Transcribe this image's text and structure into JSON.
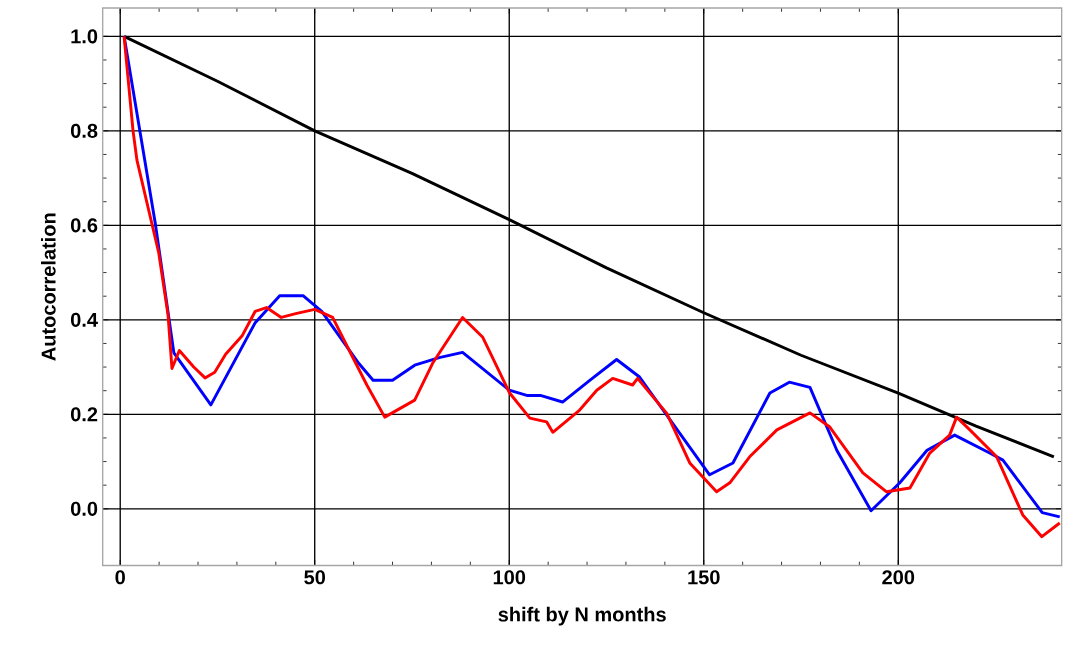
{
  "chart_data": {
    "type": "line",
    "xlabel": "shift by N months",
    "ylabel": "Autocorrelation",
    "xlim": [
      -4.5,
      242
    ],
    "ylim": [
      -0.12,
      1.06
    ],
    "xticks": [
      0,
      50,
      100,
      150,
      200
    ],
    "yticks": [
      {
        "value": 0,
        "label": "0.0"
      },
      {
        "value": 0.2,
        "label": "0.2"
      },
      {
        "value": 0.4,
        "label": "0.4"
      },
      {
        "value": 0.6,
        "label": "0.6"
      },
      {
        "value": 0.8,
        "label": "0.8"
      },
      {
        "value": 1,
        "label": "1.0"
      }
    ],
    "grid": true,
    "line_style": "solid",
    "marker": "none",
    "series": [
      {
        "color": "#000000",
        "x": [
          1,
          25,
          50,
          75,
          100,
          125,
          150,
          175,
          200,
          220,
          240
        ],
        "values": [
          1.0,
          0.905,
          0.8,
          0.71,
          0.612,
          0.51,
          0.415,
          0.325,
          0.245,
          0.175,
          0.11
        ]
      },
      {
        "color": "#0000ff",
        "x": [
          1,
          9,
          13.8,
          23.3,
          34.7,
          41,
          47,
          51.8,
          61.3,
          65,
          70,
          75.7,
          82,
          88,
          100,
          104.5,
          108,
          113.7,
          120.7,
          127.6,
          133.5,
          142,
          151.5,
          157.5,
          167,
          172,
          177.3,
          184.2,
          193,
          200.4,
          207.4,
          214.5,
          223.5,
          226.9,
          237,
          241.5
        ],
        "values": [
          1.0,
          0.605,
          0.33,
          0.22,
          0.394,
          0.451,
          0.451,
          0.418,
          0.308,
          0.272,
          0.272,
          0.304,
          0.32,
          0.331,
          0.251,
          0.24,
          0.24,
          0.226,
          0.272,
          0.316,
          0.279,
          0.181,
          0.072,
          0.097,
          0.245,
          0.268,
          0.257,
          0.124,
          -0.004,
          0.055,
          0.124,
          0.156,
          0.118,
          0.103,
          -0.008,
          -0.017
        ]
      },
      {
        "color": "#ff0000",
        "x": [
          1,
          3.3,
          4.3,
          9.9,
          12.3,
          13.3,
          15.2,
          18.9,
          21.8,
          24.3,
          27.1,
          31.4,
          34.7,
          37.6,
          41.4,
          45.1,
          50,
          54.6,
          59.5,
          63.4,
          68,
          75.7,
          80.3,
          88,
          93.2,
          100.1,
          105.3,
          109.6,
          111.2,
          118.1,
          122.5,
          126.6,
          131.7,
          133,
          140.5,
          146.4,
          153.3,
          156.7,
          161.8,
          168.8,
          177.3,
          182.4,
          190.9,
          197,
          203,
          208.1,
          213.2,
          215,
          218.4,
          225.3,
          232,
          236.9,
          241.5
        ],
        "values": [
          1.0,
          0.8,
          0.738,
          0.542,
          0.41,
          0.297,
          0.335,
          0.3,
          0.277,
          0.289,
          0.327,
          0.367,
          0.418,
          0.426,
          0.405,
          0.413,
          0.422,
          0.405,
          0.325,
          0.262,
          0.194,
          0.23,
          0.308,
          0.405,
          0.363,
          0.245,
          0.192,
          0.184,
          0.162,
          0.209,
          0.251,
          0.276,
          0.262,
          0.276,
          0.202,
          0.097,
          0.036,
          0.055,
          0.11,
          0.167,
          0.203,
          0.173,
          0.076,
          0.036,
          0.044,
          0.118,
          0.156,
          0.194,
          0.167,
          0.11,
          -0.013,
          -0.059,
          -0.03
        ]
      }
    ]
  }
}
